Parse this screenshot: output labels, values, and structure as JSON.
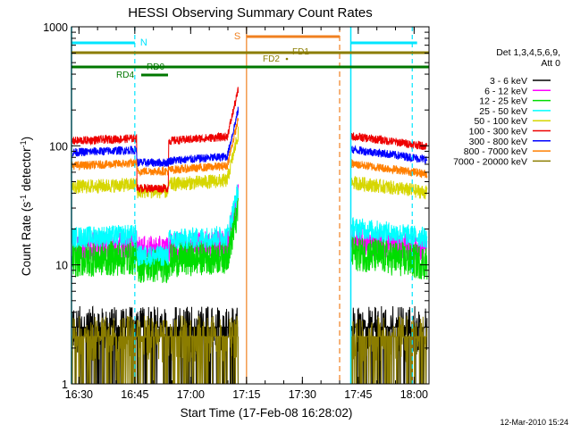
{
  "chart_data": {
    "type": "line",
    "title": "HESSI Observing Summary Count Rates",
    "xlabel": "Start Time (17-Feb-08 16:28:02)",
    "ylabel_main": "Count Rate (s",
    "ylabel_sup1": "-1",
    "ylabel_mid": " detector",
    "ylabel_sup2": "-1",
    "ylabel_end": ")",
    "yscale": "log",
    "ylim": [
      1,
      1000
    ],
    "xlim_minutes": [
      0,
      96
    ],
    "x_ticks": [
      {
        "label": "16:30",
        "min": 2
      },
      {
        "label": "16:45",
        "min": 17
      },
      {
        "label": "17:00",
        "min": 32
      },
      {
        "label": "17:15",
        "min": 47
      },
      {
        "label": "17:30",
        "min": 62
      },
      {
        "label": "17:45",
        "min": 77
      },
      {
        "label": "18:00",
        "min": 92
      }
    ],
    "y_ticks": [
      {
        "label": "1",
        "value": 1
      },
      {
        "label": "10",
        "value": 10
      },
      {
        "label": "100",
        "value": 100
      },
      {
        "label": "1000",
        "value": 1000
      }
    ],
    "legend_title": [
      "Det 1,3,4,5,6,9,",
      "Att 0"
    ],
    "series": [
      {
        "name": "3 - 6 keV",
        "color": "#000000",
        "level": 3.0,
        "noise": 0.18
      },
      {
        "name": "6 - 12 keV",
        "color": "#ff00ff",
        "level": 14,
        "noise": 0.04
      },
      {
        "name": "12 - 25 keV",
        "color": "#00dd00",
        "level": 11,
        "noise": 0.05
      },
      {
        "name": "25 - 50 keV",
        "color": "#00ffff",
        "level": 17,
        "noise": 0.03
      },
      {
        "name": "50 - 100 keV",
        "color": "#d6d600",
        "level": 45,
        "noise": 0.02
      },
      {
        "name": "100 - 300 keV",
        "color": "#ee0000",
        "level": 110,
        "noise": 0.012
      },
      {
        "name": "300 - 800 keV",
        "color": "#0000ff",
        "level": 88,
        "noise": 0.012
      },
      {
        "name": "800 - 7000 keV",
        "color": "#ff7f00",
        "level": 68,
        "noise": 0.012
      },
      {
        "name": "7000 - 20000 keV",
        "color": "#8b7d00",
        "level": 2.5,
        "noise": 0.25
      }
    ],
    "annotations": {
      "n_label": "N",
      "s_label": "S",
      "fd1_label": "FD1",
      "fd2_label": "FD2",
      "rd0_label": "RD0",
      "rd4_label": "RD4"
    },
    "timestamp": "12-Mar-2010 15:24"
  }
}
